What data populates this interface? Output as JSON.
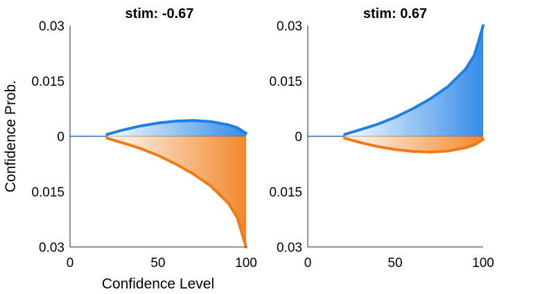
{
  "chart_data": [
    {
      "type": "area",
      "title": "stim: -0.67",
      "xlabel": "Confidence Level",
      "ylabel": "Confidence Prob.",
      "xlim": [
        0,
        100
      ],
      "ylim": [
        -0.03,
        0.03
      ],
      "x_ticks": [
        "0",
        "50",
        "100"
      ],
      "y_ticks": [
        "0.03",
        "0.015",
        "0",
        "0.015",
        "0.03"
      ],
      "x_start": 21,
      "series": [
        {
          "color": "#1f7fe6",
          "x": [
            21,
            30,
            40,
            50,
            60,
            70,
            80,
            90,
            95,
            100
          ],
          "values": [
            0.0005,
            0.0017,
            0.0028,
            0.0036,
            0.0041,
            0.0043,
            0.004,
            0.0031,
            0.0023,
            0.0008
          ]
        },
        {
          "color": "#f07a14",
          "x": [
            21,
            30,
            40,
            50,
            60,
            70,
            80,
            90,
            95,
            100
          ],
          "values": [
            -0.0005,
            -0.0018,
            -0.0033,
            -0.0052,
            -0.0075,
            -0.0102,
            -0.0135,
            -0.0182,
            -0.022,
            -0.03
          ]
        }
      ]
    },
    {
      "type": "area",
      "title": "stim:  0.67",
      "xlabel": "",
      "ylabel": "",
      "xlim": [
        0,
        100
      ],
      "ylim": [
        -0.03,
        0.03
      ],
      "x_ticks": [
        "0",
        "50",
        "100"
      ],
      "y_ticks": [
        "0.03",
        "0.015",
        "0",
        "0.015",
        "0.03"
      ],
      "x_start": 21,
      "series": [
        {
          "color": "#1f7fe6",
          "x": [
            21,
            30,
            40,
            50,
            60,
            70,
            80,
            90,
            95,
            100
          ],
          "values": [
            0.0005,
            0.0018,
            0.0033,
            0.0052,
            0.0075,
            0.0102,
            0.0135,
            0.0182,
            0.022,
            0.03
          ]
        },
        {
          "color": "#f07a14",
          "x": [
            21,
            30,
            40,
            50,
            60,
            70,
            80,
            90,
            95,
            100
          ],
          "values": [
            -0.0005,
            -0.0017,
            -0.0028,
            -0.0036,
            -0.0041,
            -0.0043,
            -0.004,
            -0.0031,
            -0.0023,
            -0.0008
          ]
        }
      ]
    }
  ]
}
